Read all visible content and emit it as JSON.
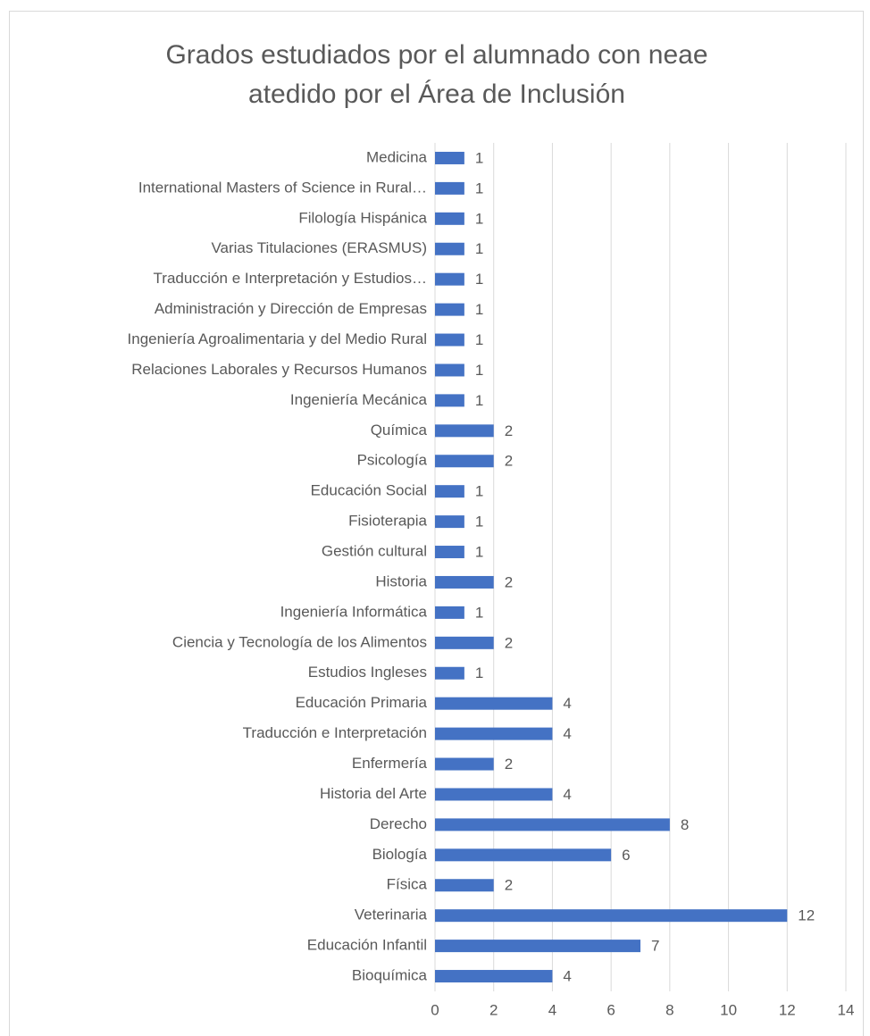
{
  "chart_data": {
    "type": "barh",
    "title": "Grados estudiados por el alumnado con neae atedido por el Área de Inclusión",
    "categories": [
      "Medicina",
      "International Masters of Science in Rural…",
      "Filología Hispánica",
      "Varias Titulaciones (ERASMUS)",
      "Traducción e Interpretación y Estudios…",
      "Administración y Dirección de Empresas",
      "Ingeniería Agroalimentaria y del Medio Rural",
      "Relaciones Laborales y Recursos Humanos",
      "Ingeniería Mecánica",
      "Química",
      "Psicología",
      "Educación Social",
      "Fisioterapia",
      "Gestión cultural",
      "Historia",
      "Ingeniería Informática",
      "Ciencia y Tecnología de los Alimentos",
      "Estudios Ingleses",
      "Educación Primaria",
      "Traducción e Interpretación",
      "Enfermería",
      "Historia del Arte",
      "Derecho",
      "Biología",
      "Física",
      "Veterinaria",
      "Educación Infantil",
      "Bioquímica"
    ],
    "values": [
      1,
      1,
      1,
      1,
      1,
      1,
      1,
      1,
      1,
      2,
      2,
      1,
      1,
      1,
      2,
      1,
      2,
      1,
      4,
      4,
      2,
      4,
      8,
      6,
      2,
      12,
      7,
      4
    ],
    "color": "#4472c4",
    "xlim": [
      0,
      14
    ],
    "xticks": [
      0,
      2,
      4,
      6,
      8,
      10,
      12,
      14
    ],
    "grid": true
  }
}
